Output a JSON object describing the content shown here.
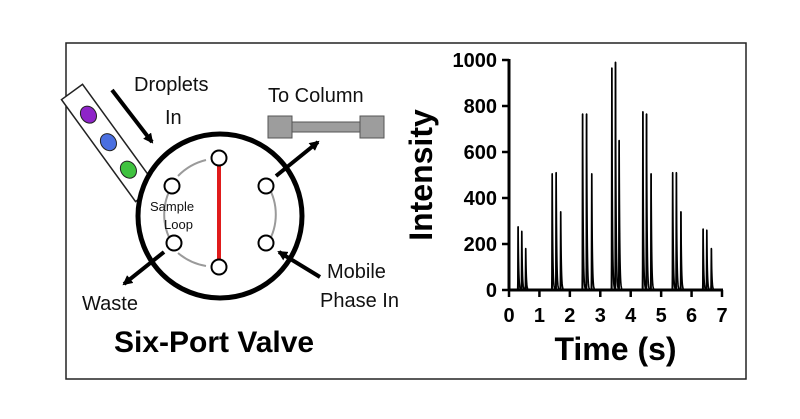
{
  "diagram": {
    "title": "Six-Port Valve",
    "labels": {
      "droplets_line1": "Droplets",
      "droplets_line2": "In",
      "to_column": "To Column",
      "sample_line1": "Sample",
      "sample_line2": "Loop",
      "waste": "Waste",
      "mobile_line1": "Mobile",
      "mobile_line2": "Phase In"
    },
    "droplet_colors": [
      "#8e24c8",
      "#4a6fe0",
      "#3fc23f"
    ],
    "sample_loop_color": "#e01b1b"
  },
  "chart_data": {
    "type": "line",
    "xlabel": "Time (s)",
    "ylabel": "Intensity",
    "xlim": [
      0,
      7
    ],
    "ylim": [
      0,
      1000
    ],
    "xticks": [
      0,
      1,
      2,
      3,
      4,
      5,
      6,
      7
    ],
    "yticks": [
      0,
      200,
      400,
      600,
      800,
      1000
    ],
    "grid": false,
    "peaks": [
      {
        "x": 0.3,
        "y": 275
      },
      {
        "x": 0.42,
        "y": 255
      },
      {
        "x": 0.55,
        "y": 180
      },
      {
        "x": 1.42,
        "y": 505
      },
      {
        "x": 1.55,
        "y": 510
      },
      {
        "x": 1.7,
        "y": 340
      },
      {
        "x": 2.42,
        "y": 765
      },
      {
        "x": 2.55,
        "y": 765
      },
      {
        "x": 2.72,
        "y": 505
      },
      {
        "x": 3.38,
        "y": 965
      },
      {
        "x": 3.5,
        "y": 990
      },
      {
        "x": 3.62,
        "y": 650
      },
      {
        "x": 4.4,
        "y": 775
      },
      {
        "x": 4.52,
        "y": 765
      },
      {
        "x": 4.67,
        "y": 505
      },
      {
        "x": 5.38,
        "y": 510
      },
      {
        "x": 5.5,
        "y": 510
      },
      {
        "x": 5.65,
        "y": 340
      },
      {
        "x": 6.38,
        "y": 265
      },
      {
        "x": 6.5,
        "y": 260
      },
      {
        "x": 6.65,
        "y": 180
      }
    ]
  }
}
